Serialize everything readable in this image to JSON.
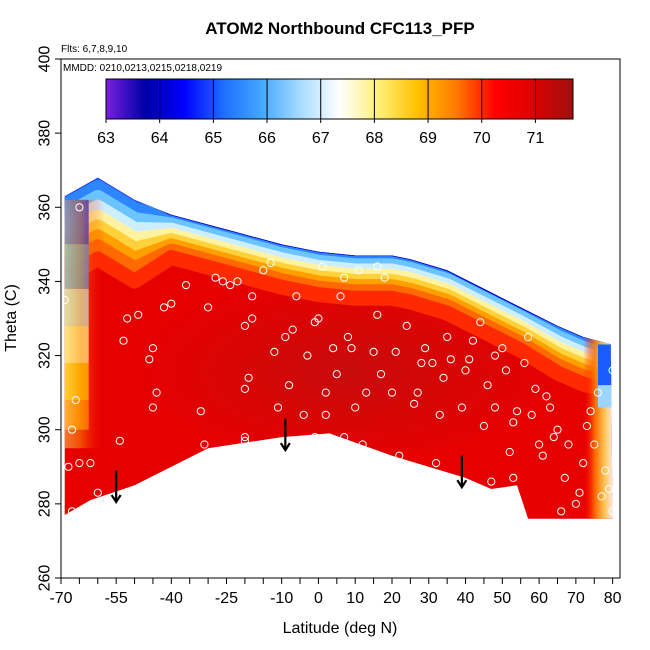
{
  "chart_data": {
    "type": "heatmap",
    "title": "ATOM2 Northbound CFC113_PFP",
    "flights_label": "Flts: 6,7,8,9,10",
    "mmdd_label": "MMDD: 0210,0213,0215,0218,0219",
    "xlabel": "Latitude (deg N)",
    "ylabel": "Theta (C)",
    "xlim": [
      -70,
      82
    ],
    "ylim": [
      260,
      400
    ],
    "x_ticks": [
      -70,
      -55,
      -40,
      -25,
      -10,
      0,
      10,
      20,
      30,
      40,
      50,
      60,
      70,
      80
    ],
    "y_ticks": [
      260,
      280,
      300,
      320,
      340,
      360,
      380,
      400
    ],
    "colorbar": {
      "ticks": [
        63,
        64,
        65,
        66,
        67,
        68,
        69,
        70,
        71
      ],
      "range": [
        63,
        71.7
      ],
      "colors": [
        "#7a1fe0",
        "#0000a8",
        "#0000ff",
        "#1e6cff",
        "#43a8ff",
        "#a8dcff",
        "#ffffff",
        "#fff07a",
        "#ffc000",
        "#ff7a00",
        "#ff0000",
        "#dd0000",
        "#a01010"
      ]
    },
    "field": {
      "top_edge": [
        [
          -69,
          363
        ],
        [
          -60,
          368
        ],
        [
          -50,
          362
        ],
        [
          -40,
          358
        ],
        [
          -25,
          354
        ],
        [
          -10,
          350
        ],
        [
          0,
          348
        ],
        [
          10,
          347
        ],
        [
          20,
          347
        ],
        [
          25,
          346
        ],
        [
          35,
          343
        ],
        [
          45,
          338
        ],
        [
          55,
          333
        ],
        [
          65,
          328
        ],
        [
          72,
          325
        ],
        [
          79.5,
          323
        ]
      ],
      "bottom_edge": [
        [
          -69,
          277
        ],
        [
          -62,
          281
        ],
        [
          -50,
          285
        ],
        [
          -30,
          295
        ],
        [
          -10,
          298
        ],
        [
          3,
          299
        ],
        [
          20,
          293
        ],
        [
          40,
          287
        ],
        [
          47,
          284
        ],
        [
          54,
          285
        ],
        [
          57,
          276
        ],
        [
          80,
          276
        ]
      ]
    },
    "data_points": [
      [
        -65,
        360
      ],
      [
        -69,
        335
      ],
      [
        -66,
        308
      ],
      [
        -67,
        300
      ],
      [
        -68,
        290
      ],
      [
        -65,
        291
      ],
      [
        -62,
        291
      ],
      [
        -67,
        278
      ],
      [
        -60,
        283
      ],
      [
        -54,
        297
      ],
      [
        -53,
        324
      ],
      [
        -52,
        330
      ],
      [
        -49,
        331
      ],
      [
        -46,
        319
      ],
      [
        -45,
        322
      ],
      [
        -45,
        306
      ],
      [
        -44,
        310
      ],
      [
        -44,
        286
      ],
      [
        -42,
        333
      ],
      [
        -40,
        334
      ],
      [
        -36,
        339
      ],
      [
        -32,
        305
      ],
      [
        -31,
        296
      ],
      [
        -30,
        333
      ],
      [
        -28,
        341
      ],
      [
        -26,
        340
      ],
      [
        -24,
        339
      ],
      [
        -22,
        340
      ],
      [
        -20,
        311
      ],
      [
        -20,
        298
      ],
      [
        -20,
        297
      ],
      [
        -20,
        328
      ],
      [
        -18,
        330
      ],
      [
        -18,
        336
      ],
      [
        -19,
        314
      ],
      [
        -15,
        343
      ],
      [
        -13,
        345
      ],
      [
        -12,
        321
      ],
      [
        -11,
        306
      ],
      [
        -9,
        325
      ],
      [
        -8,
        312
      ],
      [
        -7,
        327
      ],
      [
        -6,
        336
      ],
      [
        -4,
        304
      ],
      [
        -3,
        320
      ],
      [
        -1,
        329
      ],
      [
        -1,
        298
      ],
      [
        0,
        330
      ],
      [
        1,
        344
      ],
      [
        2,
        304
      ],
      [
        2,
        310
      ],
      [
        4,
        322
      ],
      [
        5,
        315
      ],
      [
        6,
        336
      ],
      [
        7,
        298
      ],
      [
        7,
        341
      ],
      [
        8,
        325
      ],
      [
        9,
        322
      ],
      [
        10,
        306
      ],
      [
        11,
        343
      ],
      [
        12,
        296
      ],
      [
        13,
        310
      ],
      [
        15,
        321
      ],
      [
        16,
        344
      ],
      [
        16,
        331
      ],
      [
        17,
        315
      ],
      [
        18,
        341
      ],
      [
        20,
        310
      ],
      [
        21,
        321
      ],
      [
        22,
        293
      ],
      [
        24,
        328
      ],
      [
        26,
        307
      ],
      [
        27,
        310
      ],
      [
        28,
        318
      ],
      [
        29,
        322
      ],
      [
        31,
        318
      ],
      [
        32,
        291
      ],
      [
        33,
        304
      ],
      [
        34,
        314
      ],
      [
        35,
        325
      ],
      [
        36,
        319
      ],
      [
        39,
        306
      ],
      [
        40,
        316
      ],
      [
        41,
        319
      ],
      [
        42,
        324
      ],
      [
        44,
        329
      ],
      [
        45,
        301
      ],
      [
        46,
        312
      ],
      [
        47,
        286
      ],
      [
        48,
        306
      ],
      [
        48,
        320
      ],
      [
        50,
        322
      ],
      [
        51,
        316
      ],
      [
        52,
        294
      ],
      [
        53,
        287
      ],
      [
        53,
        302
      ],
      [
        54,
        305
      ],
      [
        56,
        318
      ],
      [
        57,
        325
      ],
      [
        58,
        304
      ],
      [
        59,
        311
      ],
      [
        60,
        296
      ],
      [
        61,
        293
      ],
      [
        62,
        309
      ],
      [
        63,
        306
      ],
      [
        64,
        298
      ],
      [
        65,
        300
      ],
      [
        66,
        278
      ],
      [
        67,
        287
      ],
      [
        68,
        296
      ],
      [
        70,
        280
      ],
      [
        71,
        283
      ],
      [
        72,
        291
      ],
      [
        73,
        301
      ],
      [
        74,
        305
      ],
      [
        75,
        296
      ],
      [
        76,
        310
      ],
      [
        77,
        282
      ],
      [
        78,
        289
      ],
      [
        79,
        284
      ],
      [
        80,
        278
      ],
      [
        80,
        316
      ]
    ],
    "arrows": [
      [
        -55,
        289
      ],
      [
        -9,
        303
      ],
      [
        39,
        293
      ]
    ]
  }
}
